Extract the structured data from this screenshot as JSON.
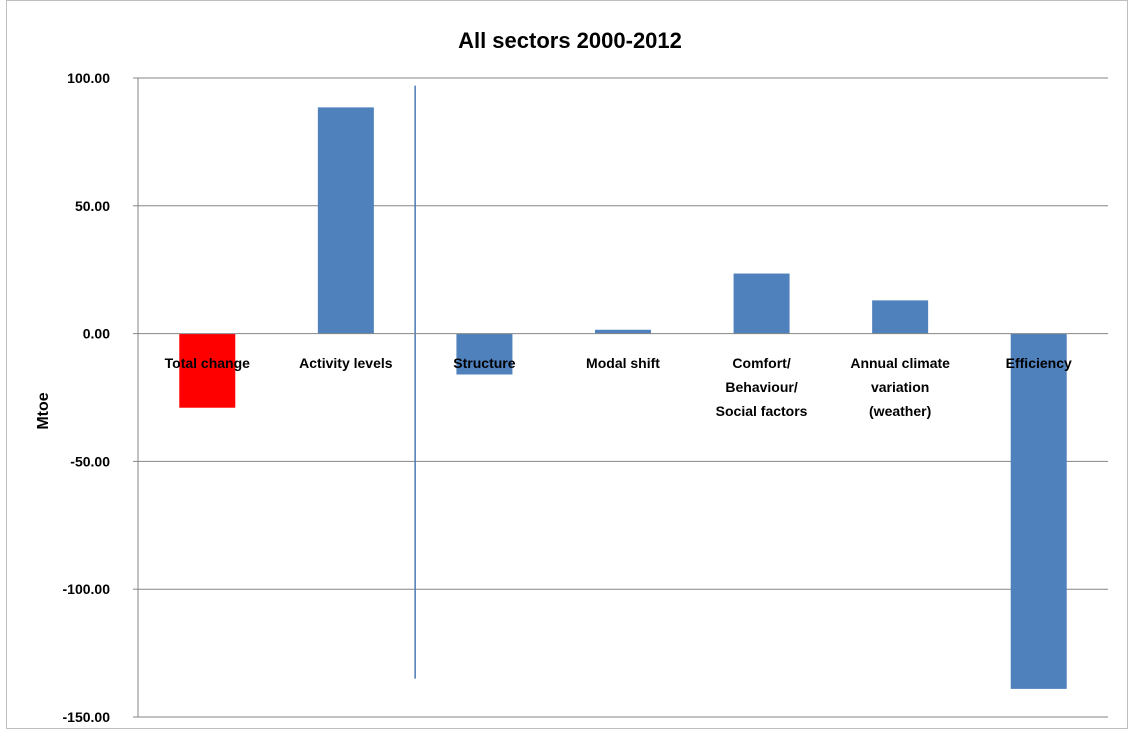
{
  "chart_data": {
    "type": "bar",
    "title": "All sectors 2000-2012",
    "ylabel": "Mtoe",
    "xlabel": "",
    "ylim": [
      -150,
      100
    ],
    "yticks": [
      100,
      50,
      0,
      -50,
      -100,
      -150
    ],
    "ytick_labels": [
      "100.00",
      "50.00",
      "0.00",
      "-50.00",
      "-100.00",
      "-150.00"
    ],
    "grid": true,
    "categories": [
      [
        "Total change"
      ],
      [
        "Activity levels"
      ],
      [
        "Structure"
      ],
      [
        "Modal shift"
      ],
      [
        "Comfort/",
        "Behaviour/",
        "Social factors"
      ],
      [
        "Annual climate",
        "variation",
        "(weather)"
      ],
      [
        "Efficiency"
      ]
    ],
    "values": [
      -29,
      88.5,
      -16,
      1.5,
      23.5,
      13,
      -139
    ],
    "bar_colors": [
      "#ff0000",
      "#4f81bd",
      "#4f81bd",
      "#4f81bd",
      "#4f81bd",
      "#4f81bd",
      "#4f81bd"
    ],
    "annotation": {
      "type": "vertical-line",
      "after_category_index": 1,
      "y_range": [
        97,
        -135
      ],
      "color": "#4a7ab5"
    }
  }
}
